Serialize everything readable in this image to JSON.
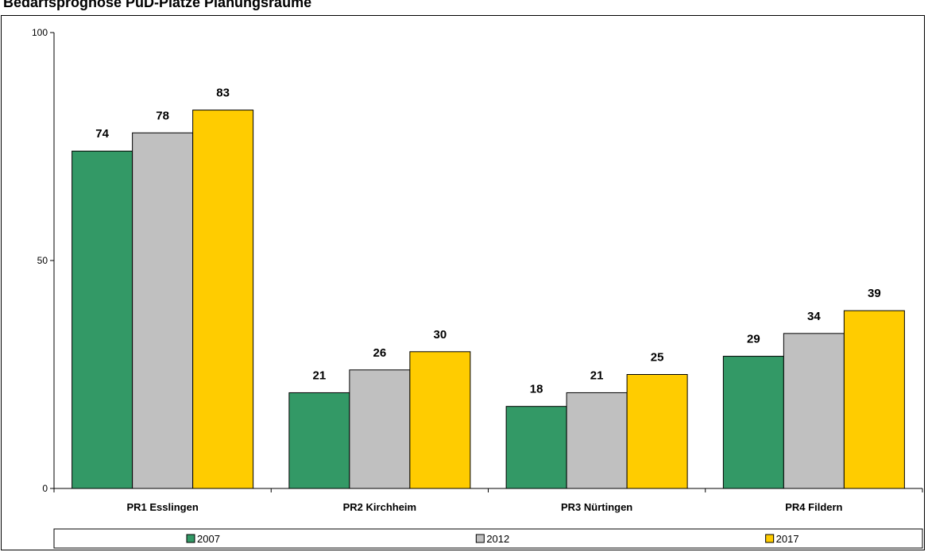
{
  "chart_data": {
    "type": "bar",
    "title": "Bedarfsprognose PuD-Plätze Planungsräume",
    "categories": [
      "PR1 Esslingen",
      "PR2 Kirchheim",
      "PR3 Nürtingen",
      "PR4 Fildern"
    ],
    "series": [
      {
        "name": "2007",
        "values": [
          74,
          21,
          18,
          29
        ],
        "color": "#339966"
      },
      {
        "name": "2012",
        "values": [
          78,
          26,
          21,
          34
        ],
        "color": "#C0C0C0"
      },
      {
        "name": "2017",
        "values": [
          83,
          30,
          25,
          39
        ],
        "color": "#FFCC00"
      }
    ],
    "ylim": [
      0,
      100
    ],
    "yticks": [
      "0",
      "50",
      "100"
    ],
    "grid": false,
    "legend_position": "bottom"
  }
}
